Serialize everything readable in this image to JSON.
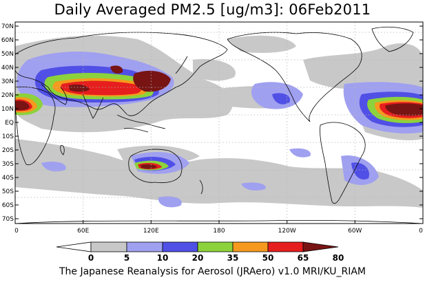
{
  "map": {
    "title": "Daily Averaged PM2.5 [ug/m3]: 06Feb2011",
    "footer": "The Japanese Reanalysis for Aerosol (JRAero) v1.0 MRI/KU_RIAM",
    "lat_labels": [
      "70N",
      "60N",
      "50N",
      "40N",
      "30N",
      "20N",
      "10N",
      "EQ",
      "10S",
      "20S",
      "30S",
      "40S",
      "50S",
      "60S",
      "70S"
    ],
    "lon_labels": [
      "0",
      "60E",
      "120E",
      "180",
      "120W",
      "60W",
      "0"
    ],
    "colorbar": {
      "ticks": [
        "0",
        "5",
        "10",
        "20",
        "35",
        "50",
        "65",
        "80"
      ],
      "colors": [
        "#ffffff",
        "#c8c8c8",
        "#a0a0f0",
        "#5050e6",
        "#8cd23c",
        "#f59a1e",
        "#e61e1e",
        "#781414"
      ]
    },
    "colors": {
      "land_line": "#000000",
      "grid": "#b4b4b4"
    }
  }
}
